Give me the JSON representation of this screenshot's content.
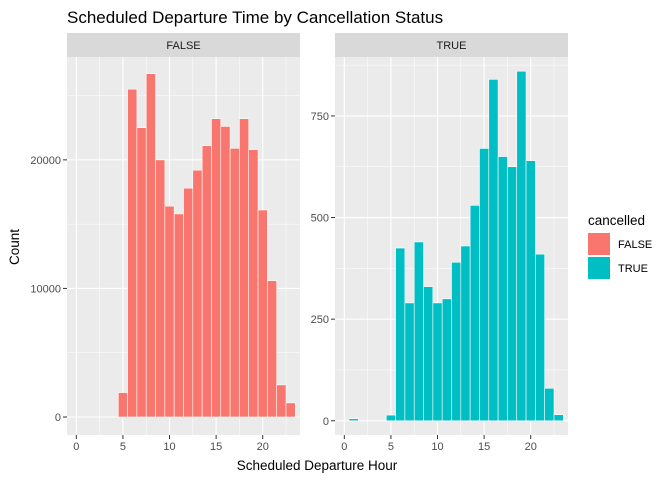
{
  "chart_data": {
    "type": "bar",
    "title": "Scheduled Departure Time by Cancellation Status",
    "xlabel": "Scheduled Departure Hour",
    "ylabel": "Count",
    "bin_width": 1,
    "xlim": [
      -1,
      24
    ],
    "x_ticks": [
      0,
      5,
      10,
      15,
      20
    ],
    "grid": true,
    "legend": {
      "title": "cancelled",
      "placement": "right",
      "entries": [
        {
          "label": "FALSE",
          "color": "#F8766D"
        },
        {
          "label": "TRUE",
          "color": "#00BFC4"
        }
      ]
    },
    "facets": [
      {
        "label": "FALSE",
        "color": "#F8766D",
        "ylim": [
          -1400,
          28000
        ],
        "y_ticks": [
          0,
          10000,
          20000
        ],
        "x": [
          5,
          6,
          7,
          8,
          9,
          10,
          11,
          12,
          13,
          14,
          15,
          16,
          17,
          18,
          19,
          20,
          21,
          22,
          23
        ],
        "values": [
          1900,
          25500,
          22500,
          26700,
          20000,
          16400,
          15800,
          17800,
          19200,
          21100,
          23200,
          22600,
          20900,
          23200,
          20800,
          16100,
          10600,
          2500,
          1100
        ]
      },
      {
        "label": "TRUE",
        "color": "#00BFC4",
        "ylim": [
          -35,
          895
        ],
        "y_ticks": [
          0,
          250,
          500,
          750
        ],
        "x": [
          1,
          5,
          6,
          7,
          8,
          9,
          10,
          11,
          12,
          13,
          14,
          15,
          16,
          17,
          18,
          19,
          20,
          21,
          22,
          23
        ],
        "values": [
          5,
          14,
          425,
          290,
          440,
          330,
          290,
          300,
          390,
          430,
          530,
          670,
          840,
          650,
          625,
          860,
          640,
          410,
          80,
          15
        ]
      }
    ]
  }
}
